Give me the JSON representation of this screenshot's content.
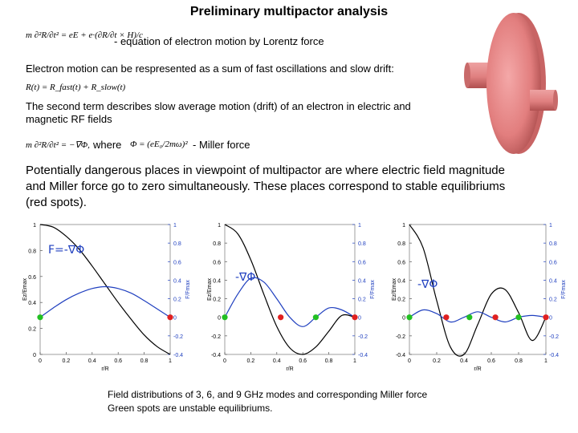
{
  "slide": {
    "title": "Preliminary multipactor analysis",
    "eq_lorentz_desc": "- equation of electron motion by Lorentz force",
    "line_sum": "Electron motion can be respresented as a sum of fast oscillations and slow drift:",
    "line_drift": "The second term describes slow average motion (drift) of an electron in electric and magnetic RF fields",
    "where_word": "where",
    "miller_desc": "- Miller force",
    "paragraph": "Potentially dangerous places in viewpoint of multipactor are where electric field magnitude and Miller force go to zero simultaneously. These places correspond to stable equilibriums (red spots).",
    "caption_line1": "Field distributions of 3, 6, and 9 GHz modes and corresponding Miller force",
    "caption_line2": "Green spots are unstable equilibriums."
  },
  "equations": {
    "lorentz": "m ∂²R/∂t² = eE + e·(∂R/∂t × H)/c",
    "sum": "R(t) = R_fast(t) + R_slow(t)",
    "miller_lhs": "m ∂²R/∂t² = −∇Φ,",
    "miller_phi": "Φ = (eE₀/2mω)²"
  },
  "plot_labels": {
    "plot1_force": "F=-∇Φ",
    "plot2_force": "-∇Φ",
    "plot3_force": "-∇Φ",
    "y_left": "Ez/Emax",
    "y_right": "F/Fmax",
    "x_label": "r/R"
  },
  "colors": {
    "field_curve": "#000000",
    "force_curve": "#1f3fbf",
    "stable_spot": "#e02020",
    "unstable_spot": "#22c022"
  },
  "chart_data": [
    {
      "type": "line",
      "title": "",
      "xlabel": "r/R",
      "ylabel": "Ez/Emax",
      "y2label": "F/Fmax",
      "xlim": [
        0,
        1
      ],
      "ylim": [
        0,
        1
      ],
      "y2lim": [
        -0.4,
        1
      ],
      "x_ticks": [
        "0",
        "0.2",
        "0.4",
        "0.6",
        "0.8",
        "1"
      ],
      "y_ticks": [
        "0",
        "0.2",
        "0.4",
        "0.6",
        "0.8",
        "1"
      ],
      "y2_ticks": [
        "-0.4",
        "-0.2",
        "0",
        "0.2",
        "0.4",
        "0.6",
        "0.8",
        "1"
      ],
      "x": [
        0,
        0.1,
        0.2,
        0.3,
        0.4,
        0.5,
        0.6,
        0.7,
        0.8,
        0.9,
        1.0
      ],
      "series": [
        {
          "axis": "left",
          "values": [
            1.0,
            0.98,
            0.91,
            0.81,
            0.68,
            0.54,
            0.4,
            0.27,
            0.15,
            0.06,
            0.0
          ]
        },
        {
          "axis": "right",
          "values": [
            0.0,
            0.1,
            0.19,
            0.26,
            0.31,
            0.33,
            0.31,
            0.26,
            0.18,
            0.09,
            0.0
          ]
        }
      ],
      "unstable_points": [
        [
          0,
          0
        ]
      ],
      "stable_points": [
        [
          1,
          0
        ]
      ]
    },
    {
      "type": "line",
      "title": "",
      "xlabel": "r/R",
      "ylabel": "Ez/Emax",
      "y2label": "F/Fmax",
      "xlim": [
        0,
        1
      ],
      "ylim": [
        -0.4,
        1
      ],
      "y2lim": [
        -0.4,
        1
      ],
      "x_ticks": [
        "0",
        "0.2",
        "0.4",
        "0.6",
        "0.8",
        "1"
      ],
      "y_ticks": [
        "-0.4",
        "-0.2",
        "0",
        "0.2",
        "0.4",
        "0.6",
        "0.8",
        "1"
      ],
      "y2_ticks": [
        "-0.4",
        "-0.2",
        "0",
        "0.2",
        "0.4",
        "0.6",
        "0.8",
        "1"
      ],
      "x": [
        0,
        0.1,
        0.2,
        0.3,
        0.4,
        0.5,
        0.6,
        0.7,
        0.8,
        0.9,
        1.0
      ],
      "series": [
        {
          "axis": "left",
          "values": [
            1.0,
            0.9,
            0.62,
            0.25,
            -0.1,
            -0.33,
            -0.4,
            -0.32,
            -0.15,
            0.02,
            0.0
          ]
        },
        {
          "axis": "right",
          "values": [
            0.0,
            0.25,
            0.42,
            0.38,
            0.2,
            0.0,
            -0.1,
            0.0,
            0.1,
            0.08,
            0.0
          ]
        }
      ],
      "unstable_points": [
        [
          0,
          0
        ],
        [
          0.7,
          0
        ]
      ],
      "stable_points": [
        [
          0.43,
          0
        ],
        [
          1,
          0
        ]
      ]
    },
    {
      "type": "line",
      "title": "",
      "xlabel": "r/R",
      "ylabel": "Ez/Emax",
      "y2label": "F/Fmax",
      "xlim": [
        0,
        1
      ],
      "ylim": [
        -0.4,
        1
      ],
      "y2lim": [
        -0.4,
        1
      ],
      "x_ticks": [
        "0",
        "0.2",
        "0.4",
        "0.6",
        "0.8",
        "1"
      ],
      "y_ticks": [
        "-0.4",
        "-0.2",
        "0",
        "0.2",
        "0.4",
        "0.6",
        "0.8",
        "1"
      ],
      "y2_ticks": [
        "-0.4",
        "-0.2",
        "0",
        "0.2",
        "0.4",
        "0.6",
        "0.8",
        "1"
      ],
      "x": [
        0,
        0.1,
        0.2,
        0.3,
        0.4,
        0.5,
        0.6,
        0.7,
        0.8,
        0.9,
        1.0
      ],
      "series": [
        {
          "axis": "left",
          "values": [
            1.0,
            0.75,
            0.18,
            -0.32,
            -0.4,
            -0.08,
            0.25,
            0.3,
            0.05,
            -0.25,
            0.0
          ]
        },
        {
          "axis": "right",
          "values": [
            0.0,
            0.08,
            0.04,
            -0.05,
            0.0,
            0.06,
            0.0,
            -0.05,
            0.0,
            0.02,
            0.0
          ]
        }
      ],
      "unstable_points": [
        [
          0,
          0
        ],
        [
          0.44,
          0
        ],
        [
          0.8,
          0
        ]
      ],
      "stable_points": [
        [
          0.27,
          0
        ],
        [
          0.63,
          0
        ],
        [
          1,
          0
        ]
      ]
    }
  ]
}
